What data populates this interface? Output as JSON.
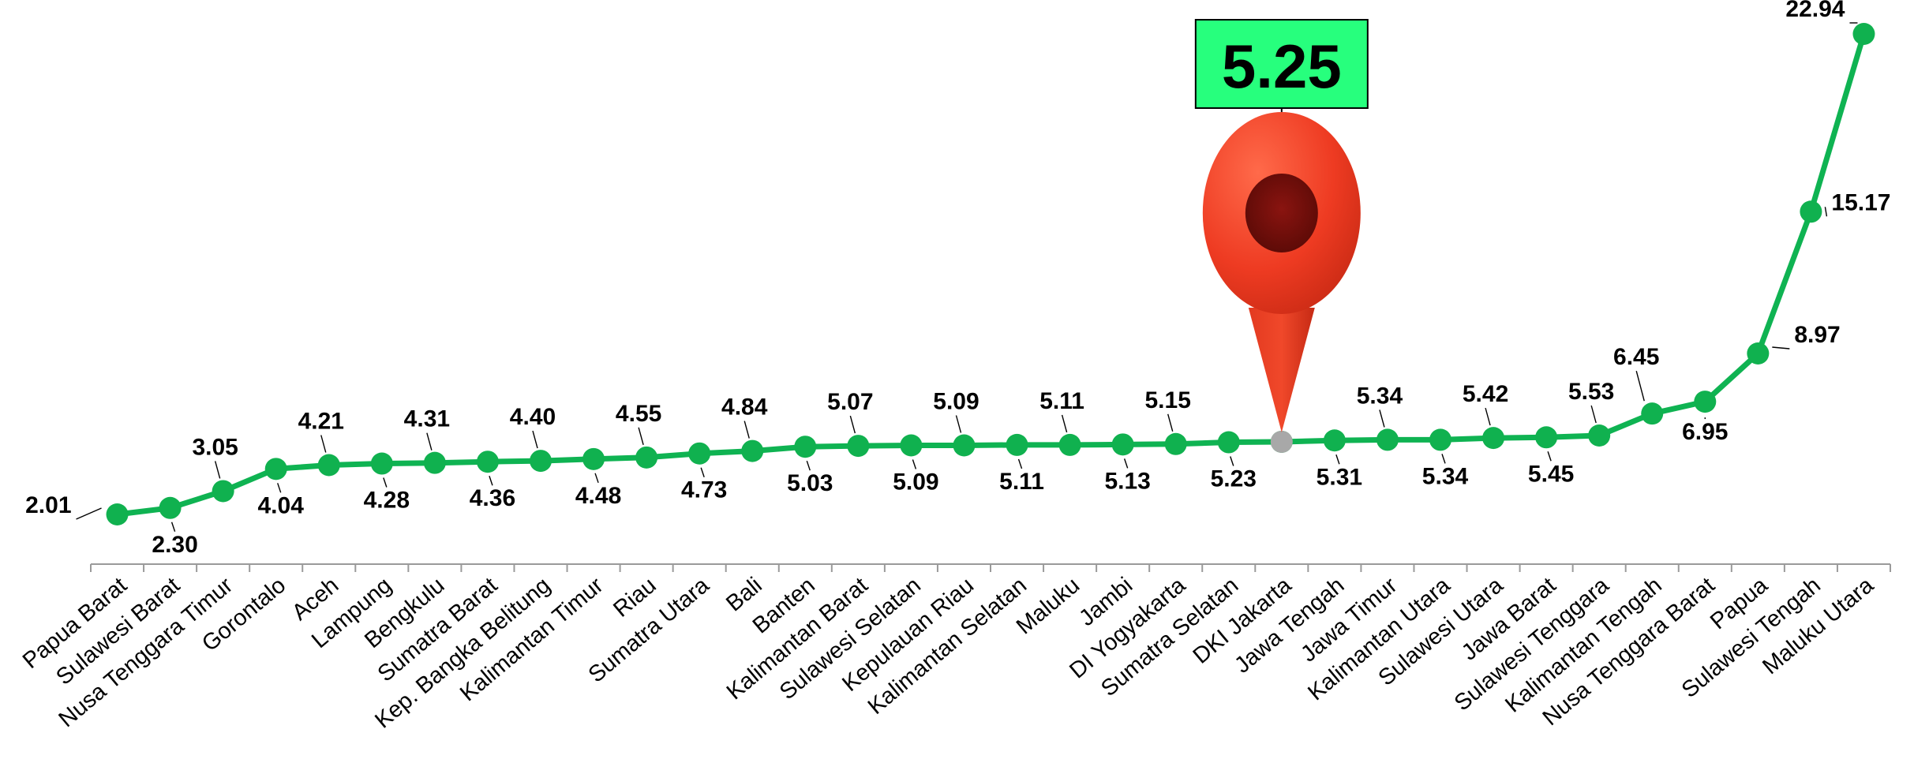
{
  "chart_data": {
    "type": "line",
    "title": "",
    "xlabel": "",
    "ylabel": "",
    "categories": [
      "Papua Barat",
      "Sulawesi Barat",
      "Nusa Tenggara Timur",
      "Gorontalo",
      "Aceh",
      "Lampung",
      "Bengkulu",
      "Sumatra Barat",
      "Kep. Bangka Belitung",
      "Kalimantan Timur",
      "Riau",
      "Sumatra Utara",
      "Bali",
      "Banten",
      "Kalimantan Barat",
      "Sulawesi Selatan",
      "Kepulauan Riau",
      "Kalimantan Selatan",
      "Maluku",
      "Jambi",
      "DI Yogyakarta",
      "Sumatra Selatan",
      "DKI Jakarta",
      "Jawa Tengah",
      "Jawa Timur",
      "Kalimantan Utara",
      "Sulawesi Utara",
      "Jawa Barat",
      "Sulawesi Tenggara",
      "Kalimantan Tengah",
      "Nusa Tenggara Barat",
      "Papua",
      "Sulawesi Tengah",
      "Maluku Utara"
    ],
    "values": [
      2.01,
      2.3,
      3.05,
      4.04,
      4.21,
      4.28,
      4.31,
      4.36,
      4.4,
      4.48,
      4.55,
      4.73,
      4.84,
      5.03,
      5.07,
      5.09,
      5.09,
      5.11,
      5.11,
      5.13,
      5.15,
      5.23,
      5.25,
      5.31,
      5.34,
      5.34,
      5.42,
      5.45,
      5.53,
      6.45,
      6.95,
      8.97,
      15.17,
      22.94
    ],
    "data_labels": [
      "2.01",
      "2.30",
      "3.05",
      "4.04",
      "4.21",
      "4.28",
      "4.31",
      "4.36",
      "4.40",
      "4.48",
      "4.55",
      "4.73",
      "4.84",
      "5.03",
      "5.07",
      "5.09",
      "5.09",
      "5.11",
      "5.11",
      "5.13",
      "5.15",
      "5.23",
      "",
      "5.31",
      "5.34",
      "5.34",
      "5.42",
      "5.45",
      "5.53",
      "6.45",
      "6.95",
      "8.97",
      "15.17",
      "22.94"
    ],
    "highlight": {
      "category": "DKI Jakarta",
      "label": "5.25"
    },
    "ylim": [
      0,
      24
    ],
    "grid": false,
    "legend": "none",
    "line_color": "#0fb352",
    "marker_color": "#10b14f",
    "callout_box_color": "#27ff7d",
    "pin_color": "#ed3b22"
  }
}
